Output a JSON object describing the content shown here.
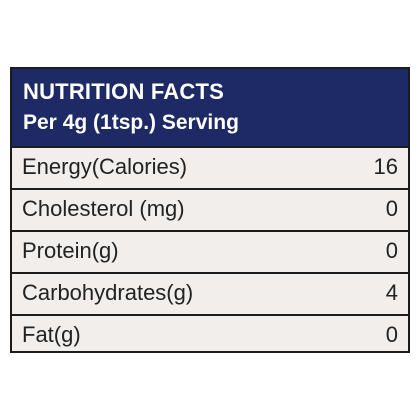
{
  "header": {
    "title": "NUTRITION FACTS",
    "serving": "Per 4g  (1tsp.) Serving"
  },
  "rows": [
    {
      "label": "Energy(Calories)",
      "value": "16"
    },
    {
      "label": "Cholesterol (mg)",
      "value": "0"
    },
    {
      "label": "Protein(g)",
      "value": "0"
    },
    {
      "label": "Carbohydrates(g)",
      "value": "4"
    },
    {
      "label": "Fat(g)",
      "value": "0"
    }
  ],
  "colors": {
    "header_bg": "#1e2a66",
    "row_bg": "#f1eeec",
    "border": "#1c1c1c"
  }
}
